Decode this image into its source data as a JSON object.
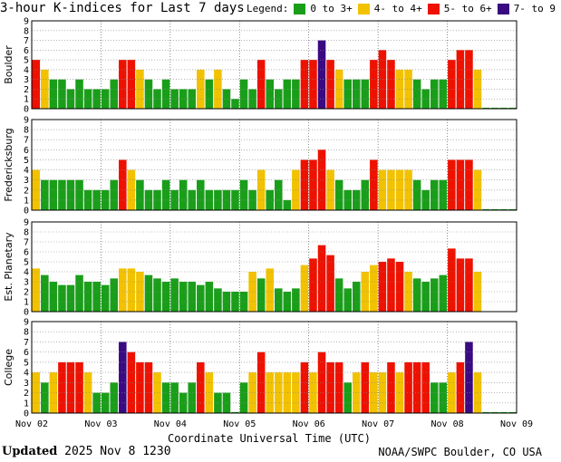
{
  "title": "3-hour K-indices for Last 7 days",
  "legend": {
    "label": "Legend:",
    "items": [
      {
        "label": "0 to 3+",
        "color": "#1a9e1a"
      },
      {
        "label": "4- to 4+",
        "color": "#f2c200"
      },
      {
        "label": "5- to 6+",
        "color": "#ee1100"
      },
      {
        "label": "7- to 9",
        "color": "#3a0a82"
      }
    ]
  },
  "colors": {
    "quiet": "#1a9e1a",
    "active": "#f2c200",
    "storm": "#ee1100",
    "severe": "#3a0a82",
    "grid": "#888888"
  },
  "x_axis": {
    "label": "Coordinate Universal Time (UTC)",
    "ticks": [
      "Nov 02",
      "Nov 03",
      "Nov 04",
      "Nov 05",
      "Nov 06",
      "Nov 07",
      "Nov 08",
      "Nov 09"
    ]
  },
  "footer": {
    "updated_label": "Updated",
    "updated_value": "2025 Nov  8 1230",
    "source": "NOAA/SWPC Boulder, CO USA"
  },
  "chart_data": [
    {
      "type": "bar",
      "station": "Boulder",
      "ylim": [
        0,
        9
      ],
      "y_ticks": [
        "0",
        "1",
        "2",
        "3",
        "4",
        "5",
        "6",
        "7",
        "8",
        "9"
      ],
      "x_ticks": [
        "Nov 02",
        "Nov 03",
        "Nov 04",
        "Nov 05",
        "Nov 06",
        "Nov 07",
        "Nov 08",
        "Nov 09"
      ],
      "bins_per_day": 8,
      "values": [
        5,
        4,
        3,
        3,
        2,
        3,
        2,
        2,
        2,
        3,
        5,
        5,
        4,
        3,
        2,
        3,
        2,
        2,
        2,
        4,
        3,
        4,
        2,
        1,
        3,
        2,
        5,
        3,
        2,
        3,
        3,
        5,
        5,
        7,
        5,
        4,
        3,
        3,
        3,
        5,
        6,
        5,
        4,
        4,
        3,
        2,
        3,
        3,
        5,
        6,
        6,
        4,
        0.1,
        0.1,
        0.1,
        0.1
      ]
    },
    {
      "type": "bar",
      "station": "Fredericksburg",
      "ylim": [
        0,
        9
      ],
      "y_ticks": [
        "0",
        "1",
        "2",
        "3",
        "4",
        "5",
        "6",
        "7",
        "8",
        "9"
      ],
      "x_ticks": [
        "Nov 02",
        "Nov 03",
        "Nov 04",
        "Nov 05",
        "Nov 06",
        "Nov 07",
        "Nov 08",
        "Nov 09"
      ],
      "bins_per_day": 8,
      "values": [
        4,
        3,
        3,
        3,
        3,
        3,
        2,
        2,
        2,
        3,
        5,
        4,
        3,
        2,
        2,
        3,
        2,
        3,
        2,
        3,
        2,
        2,
        2,
        2,
        3,
        2,
        4,
        2,
        3,
        1,
        4,
        5,
        5,
        6,
        4,
        3,
        2,
        2,
        3,
        5,
        4,
        4,
        4,
        4,
        3,
        2,
        3,
        3,
        5,
        5,
        5,
        4,
        0.1,
        0.1,
        0.1,
        0.1
      ]
    },
    {
      "type": "bar",
      "station": "Est. Planetary",
      "ylim": [
        0,
        9
      ],
      "y_ticks": [
        "0",
        "1",
        "2",
        "3",
        "4",
        "5",
        "6",
        "7",
        "8",
        "9"
      ],
      "x_ticks": [
        "Nov 02",
        "Nov 03",
        "Nov 04",
        "Nov 05",
        "Nov 06",
        "Nov 07",
        "Nov 08",
        "Nov 09"
      ],
      "bins_per_day": 8,
      "values": [
        4.33,
        3.67,
        3,
        2.67,
        2.67,
        3.67,
        3,
        3,
        2.67,
        3.33,
        4.33,
        4.33,
        4,
        3.67,
        3.33,
        3,
        3.33,
        3,
        3,
        2.67,
        3,
        2.33,
        2,
        2,
        2,
        4,
        3.33,
        4.33,
        2.33,
        2,
        2.33,
        4.67,
        5.33,
        6.67,
        5.67,
        3.33,
        2.33,
        3,
        4,
        4.67,
        5,
        5.33,
        5,
        4,
        3.33,
        3,
        3.33,
        3.67,
        6.33,
        5.33,
        5.33,
        4
      ]
    },
    {
      "type": "bar",
      "station": "College",
      "ylim": [
        0,
        9
      ],
      "y_ticks": [
        "0",
        "1",
        "2",
        "3",
        "4",
        "5",
        "6",
        "7",
        "8",
        "9"
      ],
      "x_ticks": [
        "Nov 02",
        "Nov 03",
        "Nov 04",
        "Nov 05",
        "Nov 06",
        "Nov 07",
        "Nov 08",
        "Nov 09"
      ],
      "bins_per_day": 8,
      "values": [
        4,
        3,
        4,
        5,
        5,
        5,
        4,
        2,
        2,
        3,
        7,
        6,
        5,
        5,
        4,
        3,
        3,
        2,
        3,
        5,
        4,
        2,
        2,
        0.1,
        3,
        4,
        6,
        4,
        4,
        4,
        4,
        5,
        4,
        6,
        5,
        5,
        3,
        4,
        5,
        4,
        4,
        5,
        4,
        5,
        5,
        5,
        3,
        3,
        4,
        5,
        7,
        4,
        0.1,
        0.1,
        0.1,
        0.1
      ]
    }
  ]
}
